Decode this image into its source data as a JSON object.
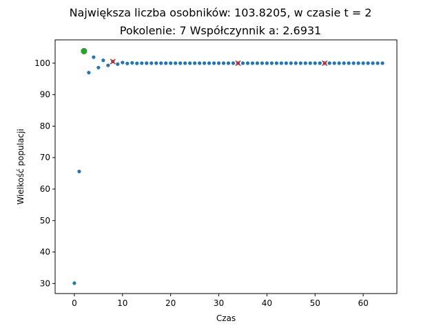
{
  "chart_data": {
    "type": "scatter",
    "title": "Największa liczba osobników: 103.8205, w czasie t = 2",
    "subtitle": "Pokolenie: 7  Współczynnik a: 2.6931",
    "xlabel": "Czas",
    "ylabel": "Wielkość populacji",
    "xlim": [
      -4,
      67
    ],
    "ylim": [
      26.8,
      107.4
    ],
    "xticks": [
      0,
      10,
      20,
      30,
      40,
      50,
      60
    ],
    "yticks": [
      30,
      40,
      50,
      60,
      70,
      80,
      90,
      100
    ],
    "grid": false,
    "series": [
      {
        "marker": "dot",
        "color": "#1f77b4",
        "x": [
          0,
          1,
          2,
          3,
          4,
          5,
          6,
          7,
          8,
          9,
          10,
          11,
          12,
          13,
          14,
          15,
          16,
          17,
          18,
          19,
          20,
          21,
          22,
          23,
          24,
          25,
          26,
          27,
          28,
          29,
          30,
          31,
          32,
          33,
          34,
          35,
          36,
          37,
          38,
          39,
          40,
          41,
          42,
          43,
          44,
          45,
          46,
          47,
          48,
          49,
          50,
          51,
          52,
          53,
          54,
          55,
          56,
          57,
          58,
          59,
          60,
          61,
          62,
          63,
          64
        ],
        "y": [
          30.1,
          65.6,
          103.8,
          97.0,
          101.9,
          98.6,
          100.9,
          99.3,
          100.5,
          99.7,
          100.2,
          99.9,
          100.1,
          99.95,
          100.0,
          100.0,
          100.0,
          100.0,
          100.0,
          100.0,
          100.0,
          100.0,
          100.0,
          100.0,
          100.0,
          100.0,
          100.0,
          100.0,
          100.0,
          100.0,
          100.0,
          100.0,
          100.0,
          100.0,
          100.0,
          100.0,
          100.0,
          100.0,
          100.0,
          100.0,
          100.0,
          100.0,
          100.0,
          100.0,
          100.0,
          100.0,
          100.0,
          100.0,
          100.0,
          100.0,
          100.0,
          100.0,
          100.0,
          100.0,
          100.0,
          100.0,
          100.0,
          100.0,
          100.0,
          100.0,
          100.0,
          100.0,
          100.0,
          100.0,
          100.0
        ]
      },
      {
        "marker": "x",
        "color": "#d62728",
        "x": [
          8,
          34,
          52
        ],
        "y": [
          100.5,
          100.0,
          100.0
        ]
      },
      {
        "marker": "octagon",
        "color": "#2ca02c",
        "x": [
          2
        ],
        "y": [
          103.8205
        ]
      }
    ]
  }
}
